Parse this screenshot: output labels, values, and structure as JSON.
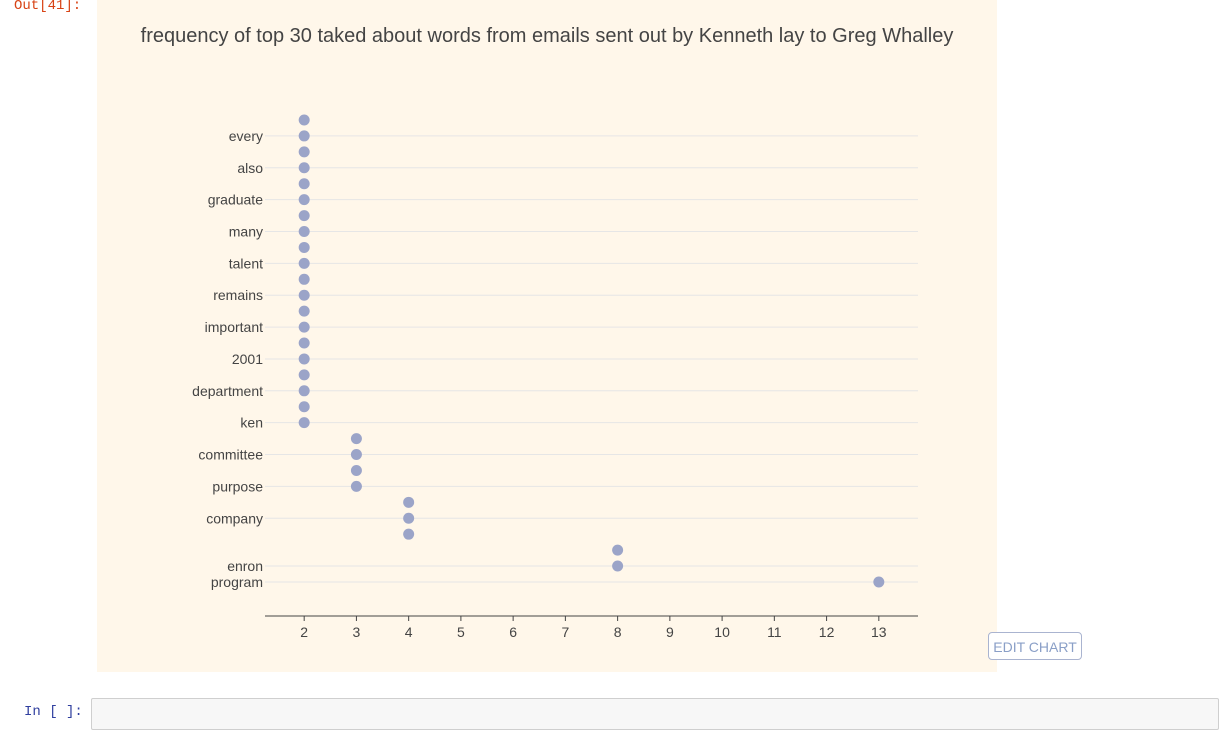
{
  "cell": {
    "out_prompt": "Out[41]:",
    "in_prompt": "In [ ]:"
  },
  "edit_button_label": "EDIT CHART",
  "colors": {
    "panel_bg": "#fff7ea",
    "marker": "#9ba4c8",
    "grid": "#e6e6e6",
    "text": "#444444"
  },
  "chart_data": {
    "type": "scatter",
    "title": "frequency of top 30 taked about words from emails sent out by Kenneth lay to Greg Whalley",
    "xlabel": "",
    "ylabel": "",
    "xlim": [
      1.25,
      13.75
    ],
    "x_ticks": [
      2,
      3,
      4,
      5,
      6,
      7,
      8,
      9,
      10,
      11,
      12,
      13
    ],
    "y_tick_labels": [
      "every",
      "also",
      "graduate",
      "many",
      "talent",
      "remains",
      "important",
      "2001",
      "department",
      "ken",
      "committee",
      "purpose",
      "company",
      "enron",
      "program"
    ],
    "grid": true,
    "legend": false,
    "points": [
      {
        "word": "",
        "count": 2
      },
      {
        "word": "every",
        "count": 2
      },
      {
        "word": "",
        "count": 2
      },
      {
        "word": "also",
        "count": 2
      },
      {
        "word": "",
        "count": 2
      },
      {
        "word": "graduate",
        "count": 2
      },
      {
        "word": "",
        "count": 2
      },
      {
        "word": "many",
        "count": 2
      },
      {
        "word": "",
        "count": 2
      },
      {
        "word": "talent",
        "count": 2
      },
      {
        "word": "",
        "count": 2
      },
      {
        "word": "remains",
        "count": 2
      },
      {
        "word": "",
        "count": 2
      },
      {
        "word": "important",
        "count": 2
      },
      {
        "word": "",
        "count": 2
      },
      {
        "word": "2001",
        "count": 2
      },
      {
        "word": "",
        "count": 2
      },
      {
        "word": "department",
        "count": 2
      },
      {
        "word": "",
        "count": 2
      },
      {
        "word": "ken",
        "count": 2
      },
      {
        "word": "",
        "count": 3
      },
      {
        "word": "committee",
        "count": 3
      },
      {
        "word": "",
        "count": 3
      },
      {
        "word": "purpose",
        "count": 3
      },
      {
        "word": "",
        "count": 4
      },
      {
        "word": "company",
        "count": 4
      },
      {
        "word": "",
        "count": 4
      },
      {
        "word": "",
        "count": 8
      },
      {
        "word": "enron",
        "count": 8
      },
      {
        "word": "program",
        "count": 13
      }
    ]
  }
}
